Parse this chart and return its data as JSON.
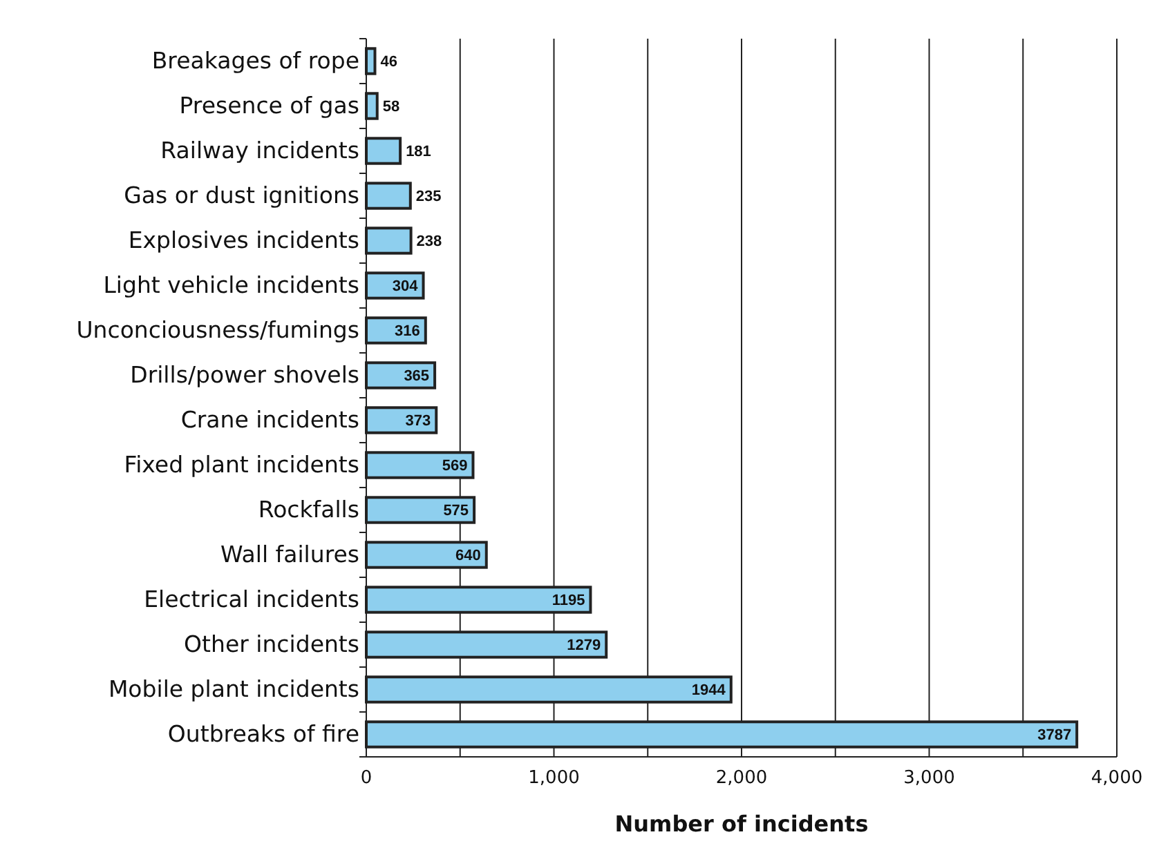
{
  "chart_data": {
    "type": "bar",
    "orientation": "horizontal",
    "xlabel": "Number of incidents",
    "categories": [
      "Breakages of rope",
      "Presence of gas",
      "Railway incidents",
      "Gas or dust ignitions",
      "Explosives incidents",
      "Light vehicle incidents",
      "Unconciousness/fumings",
      "Drills/power shovels",
      "Crane incidents",
      "Fixed plant incidents",
      "Rockfalls",
      "Wall failures",
      "Electrical incidents",
      "Other incidents",
      "Mobile plant incidents",
      "Outbreaks of fire"
    ],
    "values": [
      46,
      58,
      181,
      235,
      238,
      304,
      316,
      365,
      373,
      569,
      575,
      640,
      1195,
      1279,
      1944,
      3787
    ],
    "color": "#8ecfee",
    "xlim": [
      0,
      4000
    ],
    "xticks": [
      0,
      {
        "value": 500,
        "label": null
      },
      {
        "value": 1000,
        "label": "1,000"
      },
      {
        "value": 1500,
        "label": null
      },
      {
        "value": 2000,
        "label": "2,000"
      },
      {
        "value": 2500,
        "label": null
      },
      {
        "value": 3000,
        "label": "3,000"
      },
      {
        "value": 3500,
        "label": null
      },
      {
        "value": 4000,
        "label": "4,000"
      }
    ],
    "grid": "x",
    "data_labels": true
  }
}
